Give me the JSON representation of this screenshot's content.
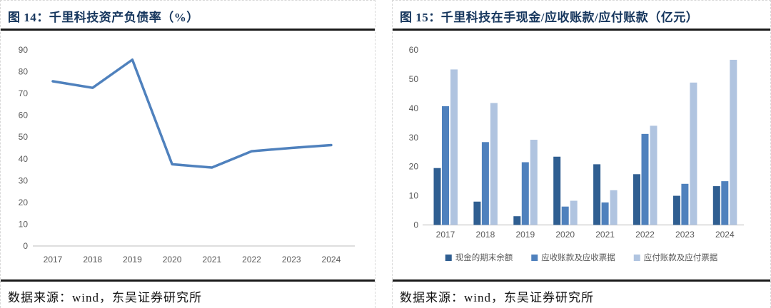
{
  "colors": {
    "title_navy": "#17375E",
    "rule_black": "#1a1a1a",
    "axis_text_gray": "#595959",
    "axis_line_gray": "#c9c9c9",
    "cell_border_gray": "#d8d8d8"
  },
  "figures": [
    {
      "title": "图 14：千里科技资产负债率（%）",
      "source": "数据来源：wind，东吴证券研究所"
    },
    {
      "title": "图 15：千里科技在手现金/应收账款/应付账款（亿元）",
      "source": "数据来源：wind，东吴证券研究所"
    }
  ],
  "chart_data": [
    {
      "type": "line",
      "title": "千里科技资产负债率（%）",
      "categories": [
        "2017",
        "2018",
        "2019",
        "2020",
        "2021",
        "2022",
        "2023",
        "2024"
      ],
      "values": [
        75.6,
        72.6,
        85.5,
        37.5,
        36.0,
        43.5,
        45.0,
        46.3
      ],
      "line_color": "#4F81BD",
      "xlabel": "",
      "ylabel": "",
      "ylim": [
        0,
        90
      ],
      "ytick_step": 10,
      "grid": false,
      "legend_position": "none"
    },
    {
      "type": "bar",
      "title": "千里科技在手现金/应收账款/应付账款（亿元）",
      "categories": [
        "2017",
        "2018",
        "2019",
        "2020",
        "2021",
        "2022",
        "2023",
        "2024"
      ],
      "series": [
        {
          "name": "现金的期末余额",
          "color": "#2F5E91",
          "values": [
            19.5,
            8.0,
            3.0,
            23.4,
            20.8,
            17.4,
            10.0,
            13.3
          ]
        },
        {
          "name": "应收账款及应收票据",
          "color": "#4F81BD",
          "values": [
            40.7,
            28.4,
            21.5,
            6.3,
            7.7,
            31.2,
            14.1,
            15.0
          ]
        },
        {
          "name": "应付账款及应付票据",
          "color": "#B0C4E0",
          "values": [
            53.3,
            41.8,
            29.2,
            8.3,
            11.9,
            34.0,
            48.8,
            56.6
          ]
        }
      ],
      "xlabel": "",
      "ylabel": "",
      "ylim": [
        0,
        60
      ],
      "ytick_step": 10,
      "grid": false,
      "legend_position": "bottom"
    }
  ]
}
